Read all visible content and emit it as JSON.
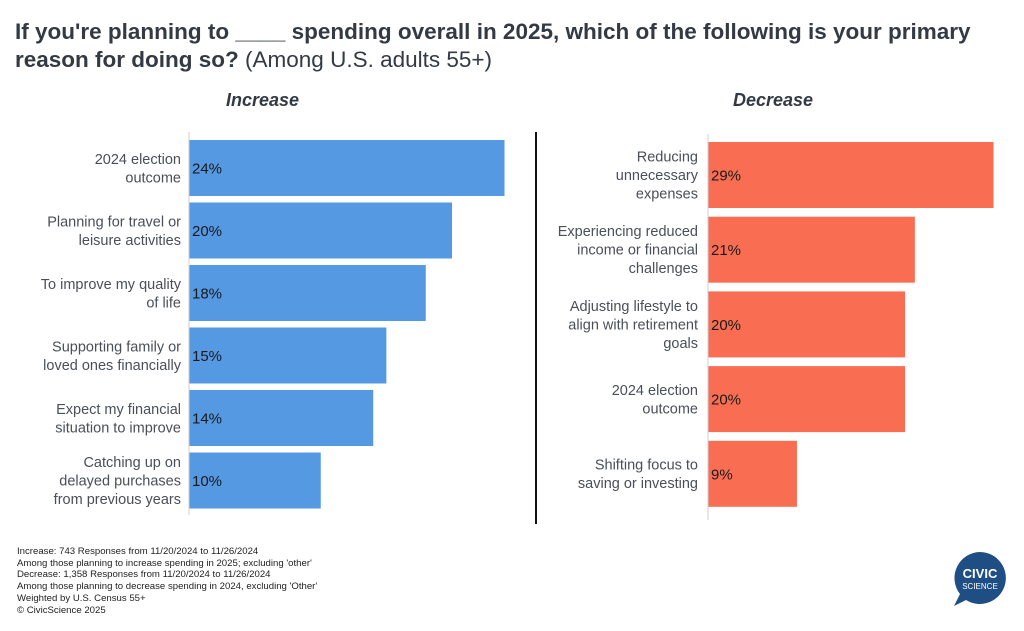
{
  "title": {
    "bold": "If you're planning to ____ spending overall in 2025, which of the following is your primary reason for doing so?",
    "subtitle": "(Among U.S. adults 55+)"
  },
  "colors": {
    "increase": "#5599e3",
    "decrease": "#f96e53",
    "axis": "#cfcfcf",
    "divider": "#111111"
  },
  "chart_data": [
    {
      "type": "bar",
      "orientation": "horizontal",
      "title": "Increase",
      "categories": [
        [
          "2024 election",
          "outcome"
        ],
        [
          "Planning for travel or",
          "leisure activities"
        ],
        [
          "To improve my quality",
          "of life"
        ],
        [
          "Supporting family or",
          "loved ones financially"
        ],
        [
          "Expect my financial",
          "situation to improve"
        ],
        [
          "Catching up on",
          "delayed purchases",
          "from previous years"
        ]
      ],
      "values": [
        24,
        20,
        18,
        15,
        14,
        10
      ],
      "labels": [
        "24%",
        "20%",
        "18%",
        "15%",
        "14%",
        "10%"
      ],
      "unit": "%",
      "xlim": [
        0,
        24
      ],
      "grid": false,
      "legend": "none"
    },
    {
      "type": "bar",
      "orientation": "horizontal",
      "title": "Decrease",
      "categories": [
        [
          "Reducing",
          "unnecessary",
          "expenses"
        ],
        [
          "Experiencing reduced",
          "income or financial",
          "challenges"
        ],
        [
          "Adjusting lifestyle to",
          "align with retirement",
          "goals"
        ],
        [
          "2024 election",
          "outcome"
        ],
        [
          "Shifting focus to",
          "saving or investing"
        ]
      ],
      "values": [
        29,
        21,
        20,
        20,
        9
      ],
      "labels": [
        "29%",
        "21%",
        "20%",
        "20%",
        "9%"
      ],
      "unit": "%",
      "xlim": [
        0,
        29
      ],
      "grid": false,
      "legend": "none"
    }
  ],
  "footnotes": [
    "Increase: 743 Responses from 11/20/2024 to 11/26/2024",
    "Among those planning to increase spending in 2025; excluding 'other'",
    "Decrease: 1,358 Responses from 11/20/2024 to 11/26/2024",
    "Among those planning to decrease spending in 2024, excluding 'Other'",
    "Weighted by U.S. Census 55+",
    "© CivicScience 2025"
  ],
  "logo": {
    "line1": "CIVIC",
    "line2": "SCIENCE",
    "color": "#1f4e85"
  }
}
